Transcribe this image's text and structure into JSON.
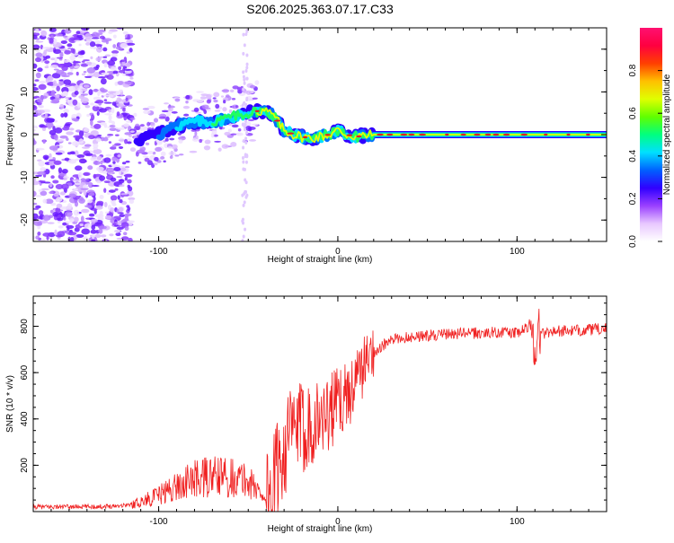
{
  "title": "S206.2025.363.07.17.C33",
  "colors": {
    "snr_line": "#f02020",
    "spec_ridge": "#e02020",
    "frame": "#000000",
    "colorbar_stops": [
      "#ffffff",
      "#e8c8ff",
      "#9a40ff",
      "#3000ff",
      "#0060ff",
      "#00e0ff",
      "#00ff80",
      "#60ff00",
      "#e0ff00",
      "#ffc000",
      "#ff4000",
      "#ff0040",
      "#ff1070"
    ]
  },
  "chart_data": [
    {
      "type": "heatmap",
      "title": "S206.2025.363.07.17.C33",
      "xlabel": "Height of straight line (km)",
      "ylabel": "Frequency (Hz)",
      "xlim": [
        -170,
        150
      ],
      "ylim": [
        -25,
        25
      ],
      "xticks": [
        "-100",
        "0",
        "100"
      ],
      "yticks": [
        "-20",
        "-10",
        "0",
        "10",
        "20"
      ],
      "colorbar": {
        "label": "Normalized spectral amplitude",
        "range": [
          0,
          1
        ],
        "ticks": [
          "0.0",
          "0.2",
          "0.4",
          "0.6",
          "0.8"
        ]
      },
      "ridge": {
        "x": [
          -110,
          -100,
          -90,
          -80,
          -70,
          -60,
          -50,
          -45,
          -40,
          -35,
          -30,
          -25,
          -20,
          -15,
          -10,
          -5,
          0,
          5,
          10,
          20,
          40,
          60,
          80,
          100,
          120,
          150
        ],
        "y": [
          -1,
          0,
          2,
          3,
          3,
          4,
          5,
          5.5,
          5.5,
          4,
          1,
          0,
          -0.5,
          -0.8,
          -0.5,
          0,
          1,
          0,
          -0.5,
          0,
          0,
          0,
          0,
          0,
          0,
          0
        ]
      }
    },
    {
      "type": "line",
      "xlabel": "Height of straight line (km)",
      "ylabel": "SNR (10 * v/v)",
      "xlim": [
        -170,
        150
      ],
      "ylim": [
        0,
        930
      ],
      "xticks": [
        "-100",
        "0",
        "100"
      ],
      "yticks": [
        "200",
        "400",
        "600",
        "800"
      ],
      "series": [
        {
          "name": "SNR",
          "x": [
            -170,
            -130,
            -115,
            -100,
            -90,
            -80,
            -70,
            -60,
            -50,
            -40,
            -36,
            -30,
            -25,
            -20,
            -15,
            -10,
            -5,
            0,
            5,
            10,
            15,
            20,
            30,
            40,
            50,
            60,
            70,
            80,
            90,
            100,
            105,
            108,
            110,
            112,
            115,
            120,
            130,
            140,
            150
          ],
          "y": [
            20,
            22,
            30,
            70,
            110,
            140,
            150,
            150,
            130,
            60,
            110,
            280,
            350,
            360,
            390,
            400,
            430,
            470,
            500,
            560,
            640,
            690,
            740,
            755,
            760,
            765,
            770,
            770,
            775,
            770,
            790,
            820,
            700,
            780,
            770,
            780,
            780,
            785,
            790
          ]
        }
      ]
    }
  ]
}
